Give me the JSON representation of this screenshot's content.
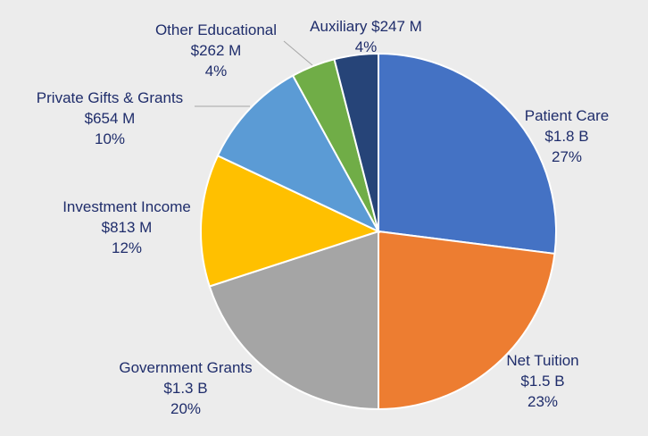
{
  "chart_data": {
    "type": "pie",
    "title": "",
    "slices": [
      {
        "name": "Patient Care",
        "amount": "$1.8 B",
        "percent": "27%",
        "value": 27,
        "color": "#4472c4"
      },
      {
        "name": "Net Tuition",
        "amount": "$1.5 B",
        "percent": "23%",
        "value": 23,
        "color": "#ed7d31"
      },
      {
        "name": "Government Grants",
        "amount": "$1.3 B",
        "percent": "20%",
        "value": 20,
        "color": "#a5a5a5"
      },
      {
        "name": "Investment Income",
        "amount": "$813 M",
        "percent": "12%",
        "value": 12,
        "color": "#ffc000"
      },
      {
        "name": "Private Gifts & Grants",
        "amount": "$654 M",
        "percent": "10%",
        "value": 10,
        "color": "#5b9bd5"
      },
      {
        "name": "Other Educational",
        "amount": "$262 M",
        "percent": "4%",
        "value": 4,
        "color": "#70ad47"
      },
      {
        "name": "Auxiliary",
        "amount": "$247 M",
        "percent": "4%",
        "value": 4,
        "color": "#264478"
      }
    ]
  }
}
